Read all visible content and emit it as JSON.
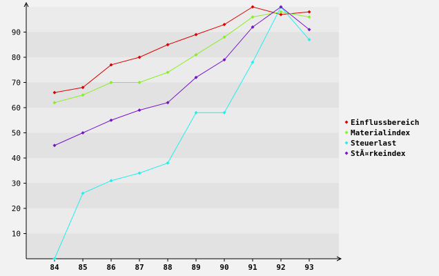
{
  "chart_data": {
    "type": "line",
    "x": [
      "84",
      "85",
      "86",
      "87",
      "88",
      "89",
      "90",
      "91",
      "92",
      "93"
    ],
    "series": [
      {
        "name": "Einflussbereich",
        "color": "#dd0000",
        "values": [
          66,
          68,
          77,
          80,
          85,
          89,
          93,
          100,
          97,
          98
        ]
      },
      {
        "name": "Materialindex",
        "color": "#88ee22",
        "values": [
          62,
          65,
          70,
          70,
          74,
          81,
          88,
          96,
          98,
          96
        ]
      },
      {
        "name": "Steuerlast",
        "color": "#22eeee",
        "values": [
          0,
          26,
          31,
          34,
          38,
          58,
          58,
          78,
          100,
          87
        ]
      },
      {
        "name": "StÃ¤rkeindex",
        "color": "#7711cc",
        "values": [
          45,
          50,
          55,
          59,
          62,
          72,
          79,
          92,
          100,
          91
        ]
      }
    ],
    "y_ticks": [
      10,
      20,
      30,
      40,
      50,
      60,
      70,
      80,
      90
    ],
    "ylim": [
      0,
      100
    ],
    "title": "",
    "xlabel": "",
    "ylabel": "",
    "grid": "alternating-bands",
    "legend_position": "right"
  }
}
